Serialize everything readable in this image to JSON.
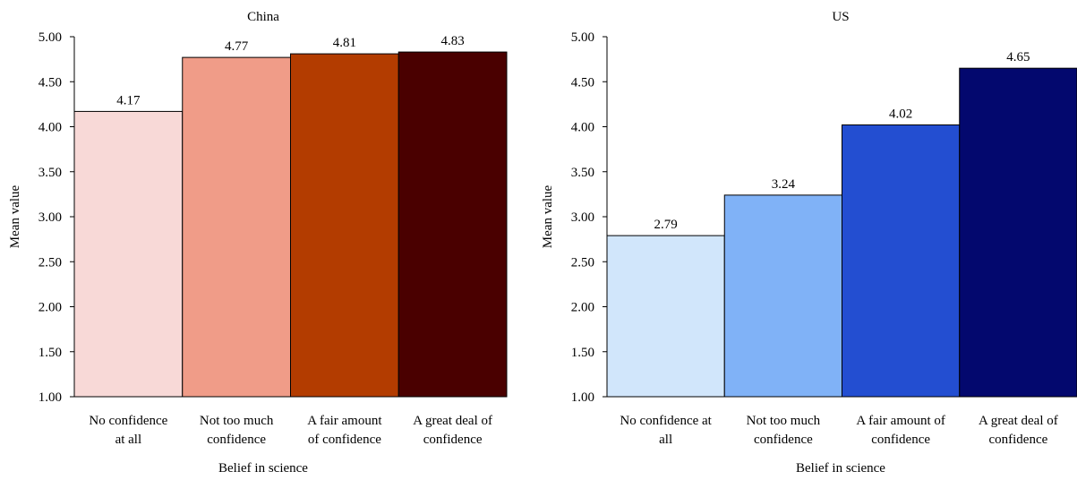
{
  "chart_data": [
    {
      "type": "bar",
      "title": "China",
      "xlabel": "Belief in science",
      "ylabel": "Mean value",
      "ylim": [
        1.0,
        5.0
      ],
      "yticks": [
        "1.00",
        "1.50",
        "2.00",
        "2.50",
        "3.00",
        "3.50",
        "4.00",
        "4.50",
        "5.00"
      ],
      "categories": [
        [
          "No confidence",
          "at all"
        ],
        [
          "Not too much",
          "confidence"
        ],
        [
          "A fair amount",
          "of confidence"
        ],
        [
          "A great deal of",
          "confidence"
        ]
      ],
      "values": [
        4.17,
        4.77,
        4.81,
        4.83
      ],
      "value_labels": [
        "4.17",
        "4.77",
        "4.81",
        "4.83"
      ],
      "colors": [
        "#f8d9d7",
        "#f09c88",
        "#b33c00",
        "#4a0000"
      ]
    },
    {
      "type": "bar",
      "title": "US",
      "xlabel": "Belief in science",
      "ylabel": "Mean value",
      "ylim": [
        1.0,
        5.0
      ],
      "yticks": [
        "1.00",
        "1.50",
        "2.00",
        "2.50",
        "3.00",
        "3.50",
        "4.00",
        "4.50",
        "5.00"
      ],
      "categories": [
        [
          "No confidence at",
          "all"
        ],
        [
          "Not too much",
          "confidence"
        ],
        [
          "A fair amount of",
          "confidence"
        ],
        [
          "A great deal of",
          "confidence"
        ]
      ],
      "values": [
        2.79,
        3.24,
        4.02,
        4.65
      ],
      "value_labels": [
        "2.79",
        "3.24",
        "4.02",
        "4.65"
      ],
      "colors": [
        "#d1e6fb",
        "#80b2f7",
        "#234ed1",
        "#03086e"
      ]
    }
  ]
}
